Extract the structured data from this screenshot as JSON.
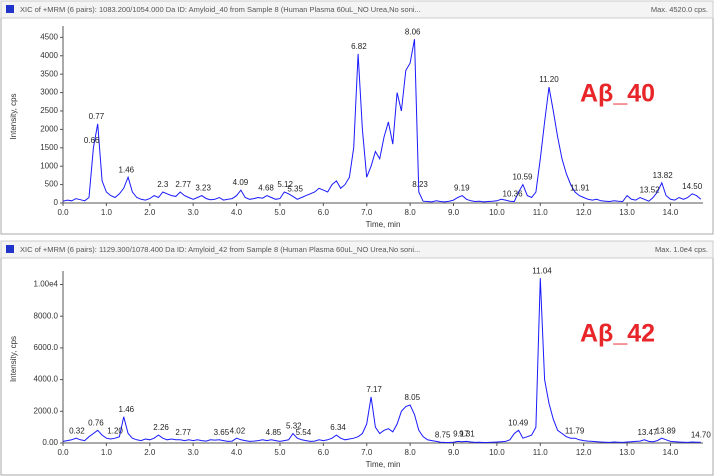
{
  "chart_data": [
    {
      "type": "line",
      "title": "XIC of +MRM (6 pairs): 1083.200/1054.000 Da ID: Amyloid_40 from Sample 8 (Human Plasma 60uL_NO Urea,No soni...",
      "max_label": "Max. 4520.0 cps.",
      "annotation": "Aβ_40",
      "x_label": "Time, min",
      "y_label": "Intensity, cps",
      "color": "#1a1aff",
      "xlim": [
        0,
        14.75
      ],
      "ylim": [
        0,
        4700
      ],
      "xticks": [
        {
          "value": 0,
          "label": "0.0"
        },
        {
          "value": 1,
          "label": "1.0"
        },
        {
          "value": 2,
          "label": "2.0"
        },
        {
          "value": 3,
          "label": "3.0"
        },
        {
          "value": 4,
          "label": "4.0"
        },
        {
          "value": 5,
          "label": "5.0"
        },
        {
          "value": 6,
          "label": "6.0"
        },
        {
          "value": 7,
          "label": "7.0"
        },
        {
          "value": 8,
          "label": "8.0"
        },
        {
          "value": 9,
          "label": "9.0"
        },
        {
          "value": 10,
          "label": "10.0"
        },
        {
          "value": 11,
          "label": "11.0"
        },
        {
          "value": 12,
          "label": "12.0"
        },
        {
          "value": 13,
          "label": "13.0"
        },
        {
          "value": 14,
          "label": "14.0"
        }
      ],
      "yticks": [
        0,
        500,
        1000,
        1500,
        2000,
        2500,
        3000,
        3500,
        4000,
        4500
      ],
      "x": [
        0,
        0.1,
        0.2,
        0.3,
        0.4,
        0.5,
        0.6,
        0.7,
        0.8,
        0.9,
        1,
        1.1,
        1.2,
        1.3,
        1.4,
        1.5,
        1.6,
        1.7,
        1.8,
        1.9,
        2,
        2.1,
        2.2,
        2.3,
        2.4,
        2.5,
        2.6,
        2.7,
        2.8,
        2.9,
        3,
        3.1,
        3.2,
        3.3,
        3.4,
        3.5,
        3.6,
        3.7,
        3.8,
        3.9,
        4,
        4.1,
        4.2,
        4.3,
        4.4,
        4.5,
        4.6,
        4.7,
        4.8,
        4.9,
        5,
        5.1,
        5.2,
        5.3,
        5.4,
        5.5,
        5.6,
        5.7,
        5.8,
        5.9,
        6,
        6.1,
        6.2,
        6.3,
        6.4,
        6.5,
        6.6,
        6.7,
        6.8,
        6.9,
        7,
        7.1,
        7.2,
        7.3,
        7.4,
        7.5,
        7.6,
        7.7,
        7.8,
        7.9,
        8,
        8.1,
        8.2,
        8.3,
        8.4,
        8.5,
        8.6,
        8.7,
        8.8,
        8.9,
        9,
        9.1,
        9.2,
        9.3,
        9.4,
        9.5,
        9.6,
        9.7,
        9.8,
        9.9,
        10,
        10.1,
        10.2,
        10.3,
        10.4,
        10.5,
        10.6,
        10.7,
        10.8,
        10.9,
        11,
        11.1,
        11.2,
        11.3,
        11.4,
        11.5,
        11.6,
        11.7,
        11.8,
        11.9,
        12,
        12.1,
        12.2,
        12.3,
        12.4,
        12.5,
        12.6,
        12.7,
        12.8,
        12.9,
        13,
        13.1,
        13.2,
        13.3,
        13.4,
        13.5,
        13.6,
        13.7,
        13.8,
        13.9,
        14,
        14.1,
        14.2,
        14.3,
        14.4,
        14.5,
        14.6,
        14.7
      ],
      "values": [
        50,
        80,
        60,
        120,
        90,
        60,
        150,
        1500,
        2150,
        600,
        300,
        200,
        150,
        250,
        400,
        700,
        300,
        150,
        100,
        80,
        120,
        200,
        150,
        300,
        250,
        200,
        180,
        300,
        200,
        150,
        100,
        150,
        200,
        120,
        90,
        100,
        150,
        80,
        100,
        120,
        200,
        350,
        150,
        100,
        120,
        150,
        130,
        200,
        150,
        100,
        120,
        300,
        250,
        180,
        100,
        150,
        200,
        250,
        300,
        400,
        350,
        300,
        500,
        600,
        400,
        500,
        700,
        1500,
        4050,
        2000,
        700,
        1000,
        1400,
        1200,
        1800,
        2200,
        1600,
        3000,
        2500,
        3600,
        3800,
        4450,
        300,
        50,
        40,
        30,
        60,
        40,
        30,
        50,
        80,
        150,
        200,
        100,
        60,
        40,
        50,
        30,
        40,
        50,
        60,
        100,
        80,
        50,
        40,
        300,
        500,
        200,
        150,
        300,
        1200,
        2200,
        3150,
        2500,
        1800,
        1200,
        800,
        500,
        300,
        200,
        150,
        100,
        80,
        100,
        60,
        50,
        40,
        60,
        50,
        40,
        200,
        100,
        80,
        150,
        100,
        50,
        150,
        300,
        550,
        200,
        100,
        80,
        150,
        100,
        150,
        250,
        200,
        100
      ],
      "peaks": [
        0.66,
        0.77,
        1.46,
        2.3,
        2.77,
        3.23,
        4.09,
        4.68,
        5.12,
        5.35,
        6.82,
        8.06,
        8.23,
        9.19,
        10.36,
        10.59,
        {
          "value": 11.2,
          "label": "11.20"
        },
        11.91,
        13.52,
        13.82,
        {
          "value": 14.5,
          "label": "14.50"
        }
      ]
    },
    {
      "type": "line",
      "title": "XIC of +MRM (6 pairs): 1129.300/1078.400 Da ID: Amyloid_42 from Sample 8 (Human Plasma 60uL_NO Urea,No soni...",
      "max_label": "Max. 1.0e4 cps.",
      "annotation": "Aβ_42",
      "x_label": "Time, min",
      "y_label": "Intensity, cps",
      "color": "#1a1aff",
      "xlim": [
        0,
        14.75
      ],
      "ylim": [
        0,
        10600
      ],
      "xticks": [
        {
          "value": 0,
          "label": "0.0"
        },
        {
          "value": 1,
          "label": "1.0"
        },
        {
          "value": 2,
          "label": "2.0"
        },
        {
          "value": 3,
          "label": "3.0"
        },
        {
          "value": 4,
          "label": "4.0"
        },
        {
          "value": 5,
          "label": "5.0"
        },
        {
          "value": 6,
          "label": "6.0"
        },
        {
          "value": 7,
          "label": "7.0"
        },
        {
          "value": 8,
          "label": "8.0"
        },
        {
          "value": 9,
          "label": "9.0"
        },
        {
          "value": 10,
          "label": "10.0"
        },
        {
          "value": 11,
          "label": "11.0"
        },
        {
          "value": 12,
          "label": "12.0"
        },
        {
          "value": 13,
          "label": "13.0"
        },
        {
          "value": 14,
          "label": "14.0"
        }
      ],
      "yticks": [
        {
          "value": 0,
          "label": "0.00"
        },
        {
          "value": 2000,
          "label": "2000.0"
        },
        {
          "value": 4000,
          "label": "4000.0"
        },
        {
          "value": 6000,
          "label": "6000.0"
        },
        {
          "value": 8000,
          "label": "8000.0"
        },
        {
          "value": 10000,
          "label": "1.00e4"
        }
      ],
      "x": [
        0,
        0.1,
        0.2,
        0.3,
        0.4,
        0.5,
        0.6,
        0.7,
        0.8,
        0.9,
        1,
        1.1,
        1.2,
        1.3,
        1.4,
        1.5,
        1.6,
        1.7,
        1.8,
        1.9,
        2,
        2.1,
        2.2,
        2.3,
        2.4,
        2.5,
        2.6,
        2.7,
        2.8,
        2.9,
        3,
        3.1,
        3.2,
        3.3,
        3.4,
        3.5,
        3.6,
        3.7,
        3.8,
        3.9,
        4,
        4.1,
        4.2,
        4.3,
        4.4,
        4.5,
        4.6,
        4.7,
        4.8,
        4.9,
        5,
        5.1,
        5.2,
        5.3,
        5.4,
        5.5,
        5.6,
        5.7,
        5.8,
        5.9,
        6,
        6.1,
        6.2,
        6.3,
        6.4,
        6.5,
        6.6,
        6.7,
        6.8,
        6.9,
        7,
        7.1,
        7.2,
        7.3,
        7.4,
        7.5,
        7.6,
        7.7,
        7.8,
        7.9,
        8,
        8.1,
        8.2,
        8.3,
        8.4,
        8.5,
        8.6,
        8.7,
        8.8,
        8.9,
        9,
        9.1,
        9.2,
        9.3,
        9.4,
        9.5,
        9.6,
        9.7,
        9.8,
        9.9,
        10,
        10.1,
        10.2,
        10.3,
        10.4,
        10.5,
        10.6,
        10.7,
        10.8,
        10.9,
        11,
        11.1,
        11.2,
        11.3,
        11.4,
        11.5,
        11.6,
        11.7,
        11.8,
        11.9,
        12,
        12.1,
        12.2,
        12.3,
        12.4,
        12.5,
        12.6,
        12.7,
        12.8,
        12.9,
        13,
        13.1,
        13.2,
        13.3,
        13.4,
        13.5,
        13.6,
        13.7,
        13.8,
        13.9,
        14,
        14.1,
        14.2,
        14.3,
        14.4,
        14.5,
        14.6,
        14.7
      ],
      "values": [
        100,
        150,
        200,
        300,
        200,
        150,
        400,
        600,
        800,
        500,
        300,
        250,
        300,
        400,
        1650,
        600,
        300,
        200,
        150,
        250,
        200,
        300,
        500,
        300,
        200,
        250,
        200,
        200,
        150,
        200,
        150,
        200,
        150,
        120,
        200,
        180,
        200,
        150,
        100,
        120,
        300,
        200,
        150,
        100,
        120,
        150,
        200,
        150,
        200,
        150,
        100,
        150,
        200,
        600,
        300,
        200,
        150,
        100,
        120,
        200,
        150,
        200,
        300,
        500,
        300,
        200,
        250,
        300,
        400,
        600,
        1200,
        2900,
        1000,
        600,
        800,
        900,
        700,
        1200,
        2000,
        2300,
        2400,
        1800,
        800,
        400,
        200,
        150,
        100,
        50,
        40,
        30,
        50,
        100,
        80,
        100,
        60,
        40,
        50,
        30,
        40,
        50,
        60,
        80,
        100,
        200,
        600,
        800,
        300,
        400,
        500,
        1000,
        10400,
        4000,
        2500,
        1500,
        800,
        600,
        400,
        300,
        300,
        200,
        150,
        120,
        100,
        80,
        60,
        50,
        40,
        60,
        50,
        40,
        60,
        80,
        100,
        120,
        200,
        100,
        80,
        150,
        300,
        200,
        100,
        80,
        60,
        50,
        40,
        60,
        50,
        50
      ],
      "peaks": [
        0.32,
        0.76,
        {
          "value": 1.2,
          "label": "1.20"
        },
        1.46,
        2.26,
        2.77,
        3.65,
        4.02,
        4.85,
        5.32,
        5.54,
        6.34,
        7.17,
        8.05,
        8.75,
        9.17,
        9.31,
        10.49,
        11.04,
        11.79,
        13.47,
        13.89,
        {
          "value": 14.7,
          "label": "14.70"
        }
      ]
    }
  ]
}
